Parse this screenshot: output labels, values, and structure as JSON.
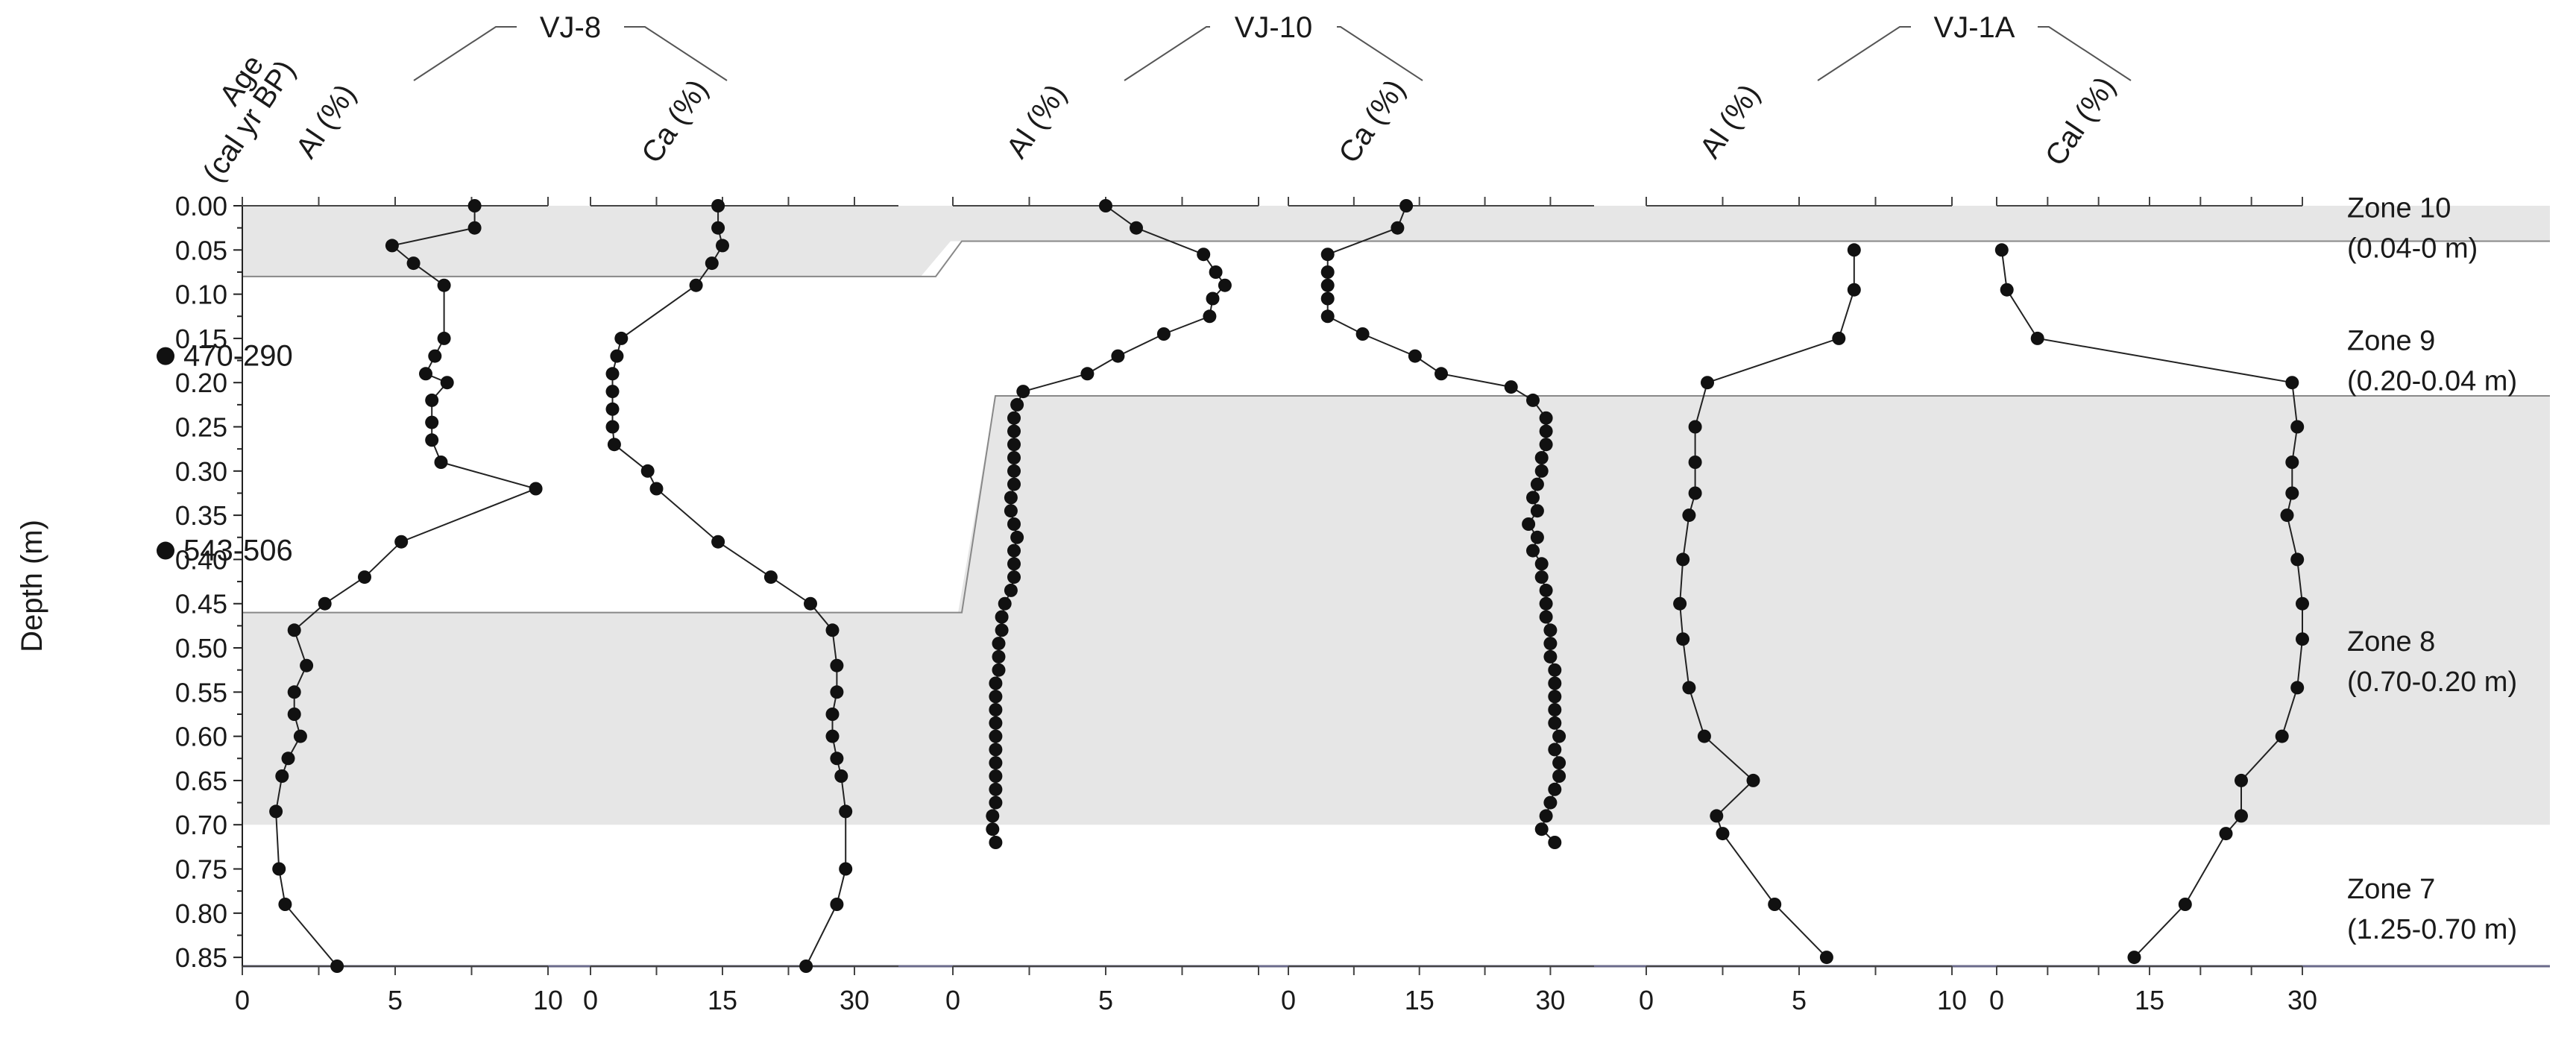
{
  "chart_data": {
    "type": "line",
    "y_axis": {
      "label": "Depth (m)",
      "range": [
        0.0,
        0.86
      ],
      "ticks": [
        "0.00",
        "0.05",
        "0.10",
        "0.15",
        "0.20",
        "0.25",
        "0.30",
        "0.35",
        "0.40",
        "0.45",
        "0.50",
        "0.55",
        "0.60",
        "0.65",
        "0.70",
        "0.75",
        "0.80",
        "0.85"
      ],
      "reversed": true
    },
    "age": {
      "header_line1": "Age",
      "header_line2": "(cal yr BP)",
      "dates": [
        {
          "label": "470-290",
          "depth": 0.17
        },
        {
          "label": "543-506",
          "depth": 0.39
        }
      ]
    },
    "zones": [
      {
        "name": "Zone 10",
        "range": "(0.04-0 m)",
        "label_depth": 0.02,
        "shaded": true
      },
      {
        "name": "Zone 9",
        "range": "(0.20-0.04 m)",
        "label_depth": 0.17,
        "shaded": false
      },
      {
        "name": "Zone 8",
        "range": "(0.70-0.20 m)",
        "label_depth": 0.51,
        "shaded": true
      },
      {
        "name": "Zone 7",
        "range": "(1.25-0.70 m)",
        "label_depth": 0.79,
        "shaded": false
      }
    ],
    "zone_boundaries": {
      "VJ-8": {
        "z10_bottom": 0.08,
        "z9_bottom": 0.46,
        "z8_bottom": 0.7
      },
      "VJ-10": {
        "z10_bottom": 0.04,
        "z9_bottom": 0.215,
        "z8_bottom": 0.7
      },
      "VJ-1A": {
        "z10_bottom": 0.04,
        "z9_bottom": 0.215,
        "z8_bottom": 0.7
      }
    },
    "cores": [
      {
        "name": "VJ-8"
      },
      {
        "name": "VJ-10"
      },
      {
        "name": "VJ-1A"
      }
    ],
    "panels": [
      {
        "core": "VJ-8",
        "label": "Al (%)",
        "xlim": [
          0,
          10
        ],
        "tick_values": [
          0,
          5,
          10
        ],
        "tick_labels": [
          "0",
          "5",
          "10"
        ],
        "minor_step": 2.5,
        "points": [
          [
            7.6,
            0.0
          ],
          [
            7.6,
            0.025
          ],
          [
            4.9,
            0.045
          ],
          [
            5.6,
            0.065
          ],
          [
            6.6,
            0.09
          ],
          [
            6.6,
            0.15
          ],
          [
            6.3,
            0.17
          ],
          [
            6.0,
            0.19
          ],
          [
            6.7,
            0.2
          ],
          [
            6.2,
            0.22
          ],
          [
            6.2,
            0.245
          ],
          [
            6.2,
            0.265
          ],
          [
            6.5,
            0.29
          ],
          [
            9.6,
            0.32
          ],
          [
            5.2,
            0.38
          ],
          [
            4.0,
            0.42
          ],
          [
            2.7,
            0.45
          ],
          [
            1.7,
            0.48
          ],
          [
            2.1,
            0.52
          ],
          [
            1.7,
            0.55
          ],
          [
            1.7,
            0.575
          ],
          [
            1.9,
            0.6
          ],
          [
            1.5,
            0.625
          ],
          [
            1.3,
            0.645
          ],
          [
            1.1,
            0.685
          ],
          [
            1.2,
            0.75
          ],
          [
            1.4,
            0.79
          ],
          [
            3.1,
            0.86
          ]
        ]
      },
      {
        "core": "VJ-8",
        "label": "Ca (%)",
        "xlim": [
          0,
          35
        ],
        "tick_values": [
          0,
          15,
          30
        ],
        "tick_labels": [
          "0",
          "15",
          "30"
        ],
        "minor_step": 7.5,
        "points": [
          [
            14.5,
            0.0
          ],
          [
            14.5,
            0.025
          ],
          [
            15.0,
            0.045
          ],
          [
            13.8,
            0.065
          ],
          [
            12.0,
            0.09
          ],
          [
            3.5,
            0.15
          ],
          [
            3.0,
            0.17
          ],
          [
            2.5,
            0.19
          ],
          [
            2.5,
            0.21
          ],
          [
            2.5,
            0.23
          ],
          [
            2.5,
            0.25
          ],
          [
            2.7,
            0.27
          ],
          [
            6.5,
            0.3
          ],
          [
            7.5,
            0.32
          ],
          [
            14.5,
            0.38
          ],
          [
            20.5,
            0.42
          ],
          [
            25.0,
            0.45
          ],
          [
            27.5,
            0.48
          ],
          [
            28.0,
            0.52
          ],
          [
            28.0,
            0.55
          ],
          [
            27.5,
            0.575
          ],
          [
            27.5,
            0.6
          ],
          [
            28.0,
            0.625
          ],
          [
            28.5,
            0.645
          ],
          [
            29.0,
            0.685
          ],
          [
            29.0,
            0.75
          ],
          [
            28.0,
            0.79
          ],
          [
            24.5,
            0.86
          ]
        ]
      },
      {
        "core": "VJ-10",
        "label": "Al (%)",
        "xlim": [
          0,
          10
        ],
        "tick_values": [
          0,
          5
        ],
        "tick_labels": [
          "0",
          "5"
        ],
        "minor_step": 2.5,
        "points": [
          [
            5.0,
            0.0
          ],
          [
            6.0,
            0.025
          ],
          [
            8.2,
            0.055
          ],
          [
            8.6,
            0.075
          ],
          [
            8.9,
            0.09
          ],
          [
            8.5,
            0.105
          ],
          [
            8.4,
            0.125
          ],
          [
            6.9,
            0.145
          ],
          [
            5.4,
            0.17
          ],
          [
            4.4,
            0.19
          ],
          [
            2.3,
            0.21
          ],
          [
            2.1,
            0.225
          ],
          [
            2.0,
            0.24
          ],
          [
            2.0,
            0.255
          ],
          [
            2.0,
            0.27
          ],
          [
            2.0,
            0.285
          ],
          [
            2.0,
            0.3
          ],
          [
            2.0,
            0.315
          ],
          [
            1.9,
            0.33
          ],
          [
            1.9,
            0.345
          ],
          [
            2.0,
            0.36
          ],
          [
            2.1,
            0.375
          ],
          [
            2.0,
            0.39
          ],
          [
            2.0,
            0.405
          ],
          [
            2.0,
            0.42
          ],
          [
            1.9,
            0.435
          ],
          [
            1.7,
            0.45
          ],
          [
            1.6,
            0.465
          ],
          [
            1.6,
            0.48
          ],
          [
            1.5,
            0.495
          ],
          [
            1.5,
            0.51
          ],
          [
            1.5,
            0.525
          ],
          [
            1.4,
            0.54
          ],
          [
            1.4,
            0.555
          ],
          [
            1.4,
            0.57
          ],
          [
            1.4,
            0.585
          ],
          [
            1.4,
            0.6
          ],
          [
            1.4,
            0.615
          ],
          [
            1.4,
            0.63
          ],
          [
            1.4,
            0.645
          ],
          [
            1.4,
            0.66
          ],
          [
            1.4,
            0.675
          ],
          [
            1.3,
            0.69
          ],
          [
            1.3,
            0.705
          ],
          [
            1.4,
            0.72
          ]
        ]
      },
      {
        "core": "VJ-10",
        "label": "Ca (%)",
        "xlim": [
          0,
          35
        ],
        "tick_values": [
          0,
          15,
          30
        ],
        "tick_labels": [
          "0",
          "15",
          "30"
        ],
        "minor_step": 7.5,
        "points": [
          [
            13.5,
            0.0
          ],
          [
            12.5,
            0.025
          ],
          [
            4.5,
            0.055
          ],
          [
            4.5,
            0.075
          ],
          [
            4.5,
            0.09
          ],
          [
            4.5,
            0.105
          ],
          [
            4.5,
            0.125
          ],
          [
            8.5,
            0.145
          ],
          [
            14.5,
            0.17
          ],
          [
            17.5,
            0.19
          ],
          [
            25.5,
            0.205
          ],
          [
            28.0,
            0.22
          ],
          [
            29.5,
            0.24
          ],
          [
            29.5,
            0.255
          ],
          [
            29.5,
            0.27
          ],
          [
            29.0,
            0.285
          ],
          [
            29.0,
            0.3
          ],
          [
            28.5,
            0.315
          ],
          [
            28.0,
            0.33
          ],
          [
            28.5,
            0.345
          ],
          [
            27.5,
            0.36
          ],
          [
            28.5,
            0.375
          ],
          [
            28.0,
            0.39
          ],
          [
            29.0,
            0.405
          ],
          [
            29.0,
            0.42
          ],
          [
            29.5,
            0.435
          ],
          [
            29.5,
            0.45
          ],
          [
            29.5,
            0.465
          ],
          [
            30.0,
            0.48
          ],
          [
            30.0,
            0.495
          ],
          [
            30.0,
            0.51
          ],
          [
            30.5,
            0.525
          ],
          [
            30.5,
            0.54
          ],
          [
            30.5,
            0.555
          ],
          [
            30.5,
            0.57
          ],
          [
            30.5,
            0.585
          ],
          [
            31.0,
            0.6
          ],
          [
            30.5,
            0.615
          ],
          [
            31.0,
            0.63
          ],
          [
            31.0,
            0.645
          ],
          [
            30.5,
            0.66
          ],
          [
            30.0,
            0.675
          ],
          [
            29.5,
            0.69
          ],
          [
            29.0,
            0.705
          ],
          [
            30.5,
            0.72
          ]
        ]
      },
      {
        "core": "VJ-1A",
        "label": "Al (%)",
        "xlim": [
          0,
          10
        ],
        "tick_values": [
          0,
          5,
          10
        ],
        "tick_labels": [
          "0",
          "5",
          "10"
        ],
        "minor_step": 2.5,
        "points": [
          [
            6.8,
            0.05
          ],
          [
            6.8,
            0.095
          ],
          [
            6.3,
            0.15
          ],
          [
            2.0,
            0.2
          ],
          [
            1.6,
            0.25
          ],
          [
            1.6,
            0.29
          ],
          [
            1.6,
            0.325
          ],
          [
            1.4,
            0.35
          ],
          [
            1.2,
            0.4
          ],
          [
            1.1,
            0.45
          ],
          [
            1.2,
            0.49
          ],
          [
            1.4,
            0.545
          ],
          [
            1.9,
            0.6
          ],
          [
            3.5,
            0.65
          ],
          [
            2.3,
            0.69
          ],
          [
            2.5,
            0.71
          ],
          [
            4.2,
            0.79
          ],
          [
            5.9,
            0.85
          ]
        ]
      },
      {
        "core": "VJ-1A",
        "label": "Cal (%)",
        "xlim": [
          0,
          30
        ],
        "tick_values": [
          0,
          15,
          30
        ],
        "tick_labels": [
          "0",
          "15",
          "30"
        ],
        "minor_step": 5,
        "points": [
          [
            0.5,
            0.05
          ],
          [
            1.0,
            0.095
          ],
          [
            4.0,
            0.15
          ],
          [
            29.0,
            0.2
          ],
          [
            29.5,
            0.25
          ],
          [
            29.0,
            0.29
          ],
          [
            29.0,
            0.325
          ],
          [
            28.5,
            0.35
          ],
          [
            29.5,
            0.4
          ],
          [
            30.0,
            0.45
          ],
          [
            30.0,
            0.49
          ],
          [
            29.5,
            0.545
          ],
          [
            28.0,
            0.6
          ],
          [
            24.0,
            0.65
          ],
          [
            24.0,
            0.69
          ],
          [
            22.5,
            0.71
          ],
          [
            18.5,
            0.79
          ],
          [
            13.5,
            0.85
          ]
        ]
      }
    ]
  }
}
